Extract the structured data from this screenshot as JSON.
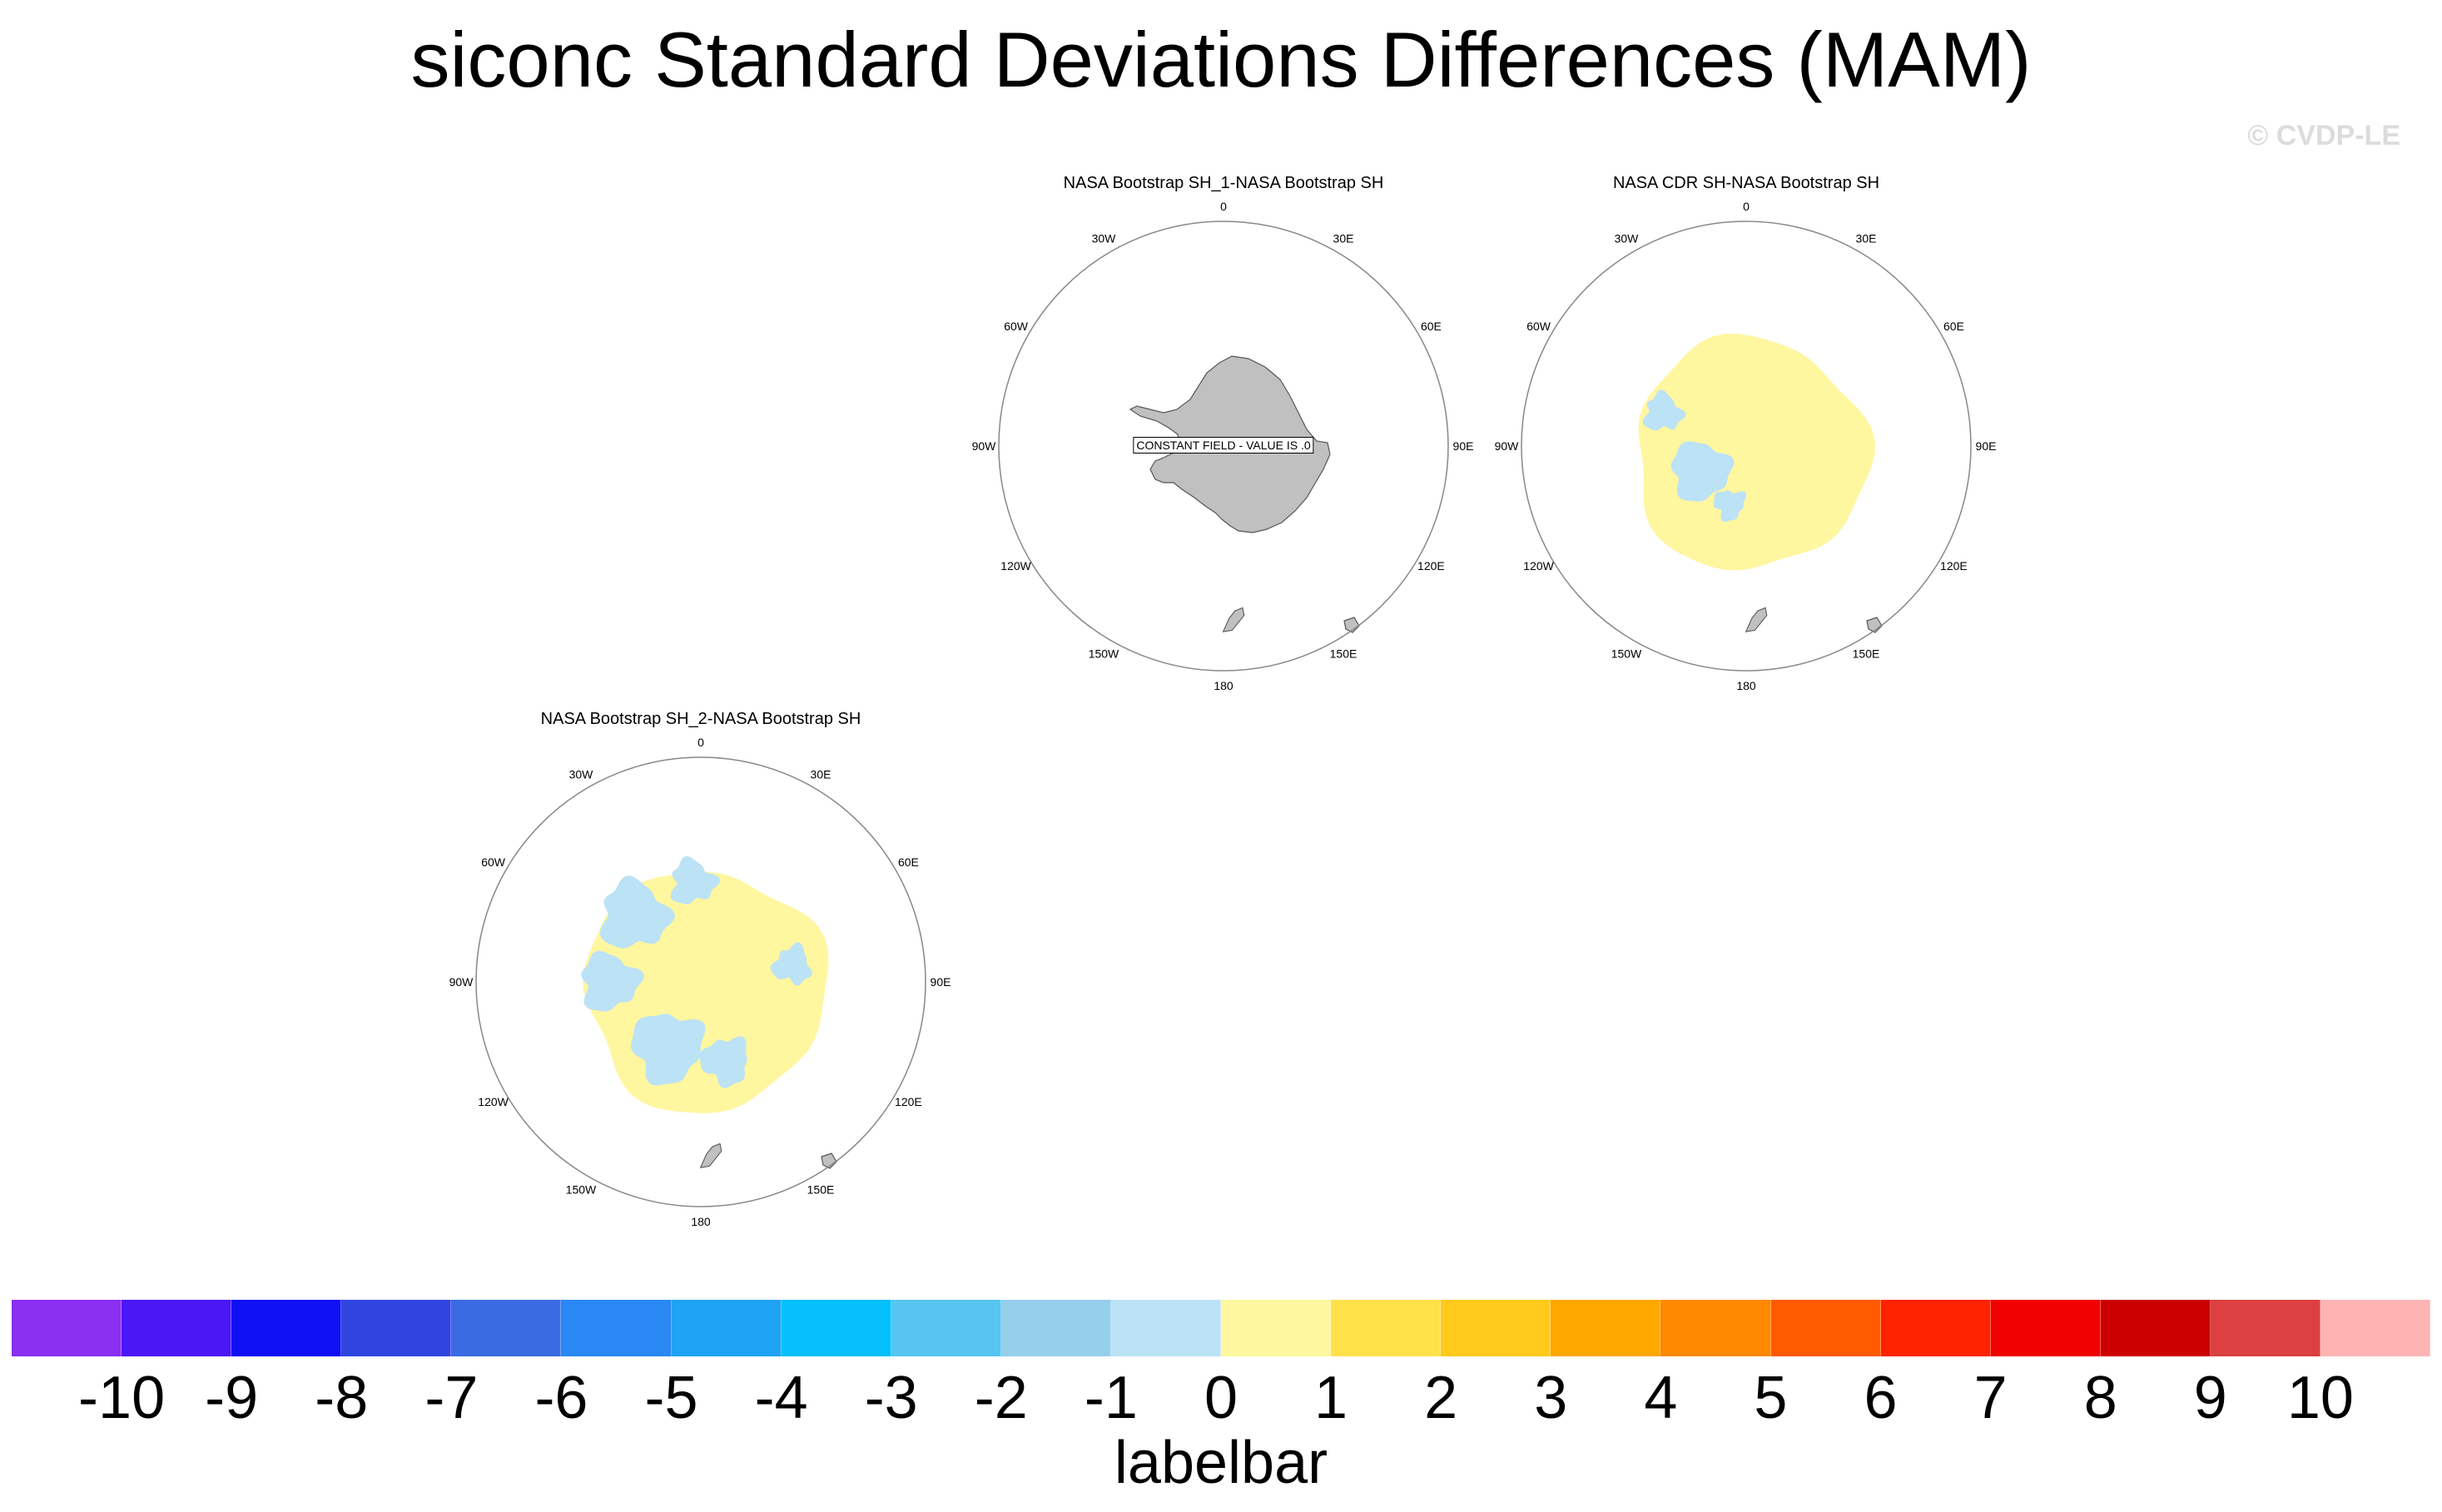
{
  "title": "siconc Standard Deviations Differences (MAM)",
  "watermark": "© CVDP-LE",
  "lon_labels": [
    "0",
    "30E",
    "60E",
    "90E",
    "120E",
    "150E",
    "180",
    "150W",
    "120W",
    "90W",
    "60W",
    "30W"
  ],
  "panels": [
    {
      "id": "sh1",
      "title": "NASA Bootstrap SH_1-NASA Bootstrap SH",
      "note": "CONSTANT FIELD - VALUE IS .0",
      "field": "constant"
    },
    {
      "id": "cdr",
      "title": "NASA CDR SH-NASA Bootstrap SH",
      "note": "",
      "field": "mostly_positive"
    },
    {
      "id": "sh2",
      "title": "NASA Bootstrap SH_2-NASA Bootstrap SH",
      "note": "",
      "field": "mixed"
    }
  ],
  "colorbar": {
    "title": "labelbar",
    "tick_labels": [
      "-10",
      "-9",
      "-8",
      "-7",
      "-6",
      "-5",
      "-4",
      "-3",
      "-2",
      "-1",
      "0",
      "1",
      "2",
      "3",
      "4",
      "5",
      "6",
      "7",
      "8",
      "9",
      "10"
    ],
    "colors": [
      "#8b2ff0",
      "#4a17f5",
      "#1010f5",
      "#3045e0",
      "#3a6be2",
      "#2a88f5",
      "#1fa3f5",
      "#05c0fa",
      "#56c5f2",
      "#96cfec",
      "#bce2f5",
      "#fff6a0",
      "#ffe14a",
      "#ffca1c",
      "#ffa800",
      "#ff8800",
      "#ff5a00",
      "#ff2200",
      "#f00000",
      "#cc0000",
      "#dc4040",
      "#ffb4b4"
    ]
  },
  "colors": {
    "land": "#c0c0c0",
    "coast": "#555555",
    "light_blue": "#bce2f5",
    "light_yellow": "#fff6a0",
    "grid_circle": "#888888"
  }
}
